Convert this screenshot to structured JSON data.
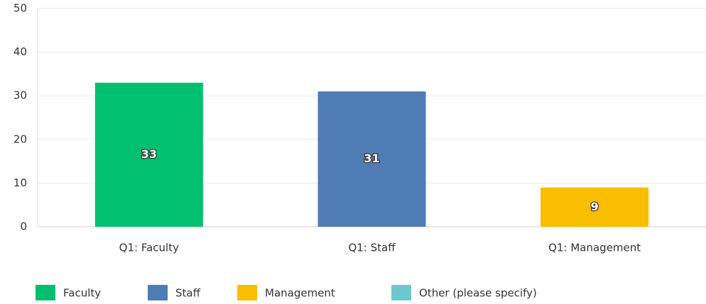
{
  "chart_data": {
    "type": "bar",
    "categories": [
      "Q1: Faculty",
      "Q1: Staff",
      "Q1: Management"
    ],
    "series": [
      {
        "name": "Faculty",
        "color": "#00bf6f",
        "values": [
          33,
          null,
          null
        ]
      },
      {
        "name": "Staff",
        "color": "#507cb6",
        "values": [
          null,
          31,
          null
        ]
      },
      {
        "name": "Management",
        "color": "#f9be00",
        "values": [
          null,
          null,
          9
        ]
      },
      {
        "name": "Other (please specify)",
        "color": "#6bc8cd",
        "values": [
          null,
          null,
          null
        ]
      }
    ],
    "ylim": [
      0,
      50
    ],
    "yticks": [
      0,
      10,
      20,
      30,
      40,
      50
    ],
    "grid": true,
    "legend": "bottom"
  }
}
